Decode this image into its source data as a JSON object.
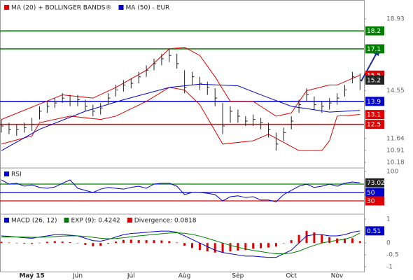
{
  "chart_data": [
    {
      "type": "ohlc",
      "ylim": [
        9.84,
        20.08
      ],
      "yticks": [
        18.93,
        14.55,
        11.64,
        10.91,
        10.18
      ],
      "prices": {
        "color": "#222222",
        "high": [
          12.8,
          12.6,
          12.5,
          12.6,
          12.9,
          13.6,
          13.9,
          14.1,
          14.4,
          14.3,
          14.3,
          14.0,
          13.7,
          13.8,
          14.4,
          14.9,
          15.2,
          15.3,
          15.7,
          16.1,
          16.5,
          16.8,
          17.1,
          16.8,
          15.8,
          15.7,
          15.4,
          15.1,
          14.7,
          13.8,
          13.6,
          13.4,
          13.0,
          13.1,
          12.9,
          12.6,
          12.0,
          12.3,
          13.0,
          14.0,
          14.7,
          14.2,
          13.9,
          14.1,
          14.4,
          14.9,
          15.7,
          15.6
        ],
        "low": [
          12.0,
          11.9,
          11.8,
          12.0,
          12.1,
          12.8,
          13.2,
          13.5,
          13.8,
          13.6,
          13.6,
          13.3,
          13.0,
          13.1,
          13.7,
          14.2,
          14.5,
          14.7,
          15.0,
          15.4,
          15.8,
          16.1,
          16.3,
          15.9,
          14.4,
          14.9,
          14.6,
          14.3,
          13.6,
          11.9,
          12.6,
          12.6,
          12.4,
          12.4,
          12.2,
          11.7,
          10.9,
          11.5,
          12.2,
          13.2,
          13.9,
          13.4,
          13.2,
          13.4,
          13.7,
          14.2,
          15.0,
          14.6
        ],
        "close": [
          12.4,
          12.2,
          12.2,
          12.3,
          12.5,
          13.3,
          13.6,
          13.8,
          14.1,
          13.9,
          14.0,
          13.6,
          13.3,
          13.5,
          14.1,
          14.6,
          14.9,
          15.0,
          15.4,
          15.8,
          16.2,
          16.5,
          16.7,
          16.2,
          14.75,
          15.4,
          15.0,
          14.75,
          14.1,
          12.4,
          13.3,
          13.0,
          12.7,
          12.8,
          12.6,
          12.2,
          11.3,
          12.0,
          12.7,
          13.7,
          14.3,
          13.7,
          13.6,
          13.8,
          14.1,
          14.6,
          15.4,
          15.2
        ]
      },
      "series": [
        {
          "name": "MA (20) + BOLLINGER BANDS®",
          "color": "#e00000",
          "bands": [
            {
              "x": [
                0,
                8,
                12,
                15,
                19,
                22,
                24,
                26,
                28,
                30,
                33,
                36,
                38,
                40,
                43,
                44,
                47
              ],
              "values": [
                12.8,
                14.3,
                14.1,
                14.75,
                15.8,
                17.1,
                17.2,
                16.7,
                15.4,
                13.9,
                13.9,
                13.0,
                13.2,
                14.55,
                14.9,
                14.9,
                15.5
              ]
            },
            {
              "x": [
                0,
                4,
                5,
                9,
                13,
                15,
                19,
                22,
                24,
                26,
                29,
                33,
                35,
                39,
                42,
                43,
                44,
                47
              ],
              "values": [
                11.3,
                11.8,
                12.6,
                13.0,
                12.8,
                13.0,
                13.9,
                14.75,
                14.6,
                13.7,
                11.3,
                11.5,
                11.9,
                10.9,
                10.9,
                11.5,
                13.0,
                13.1
              ]
            }
          ]
        },
        {
          "name": "MA (50) - EUR",
          "color": "#0000cc",
          "x": [
            0,
            5,
            11,
            16,
            22,
            26,
            31,
            34,
            38,
            43,
            47
          ],
          "values": [
            10.9,
            12.2,
            13.3,
            14.0,
            14.75,
            14.95,
            14.85,
            14.3,
            13.6,
            13.25,
            13.35
          ]
        }
      ],
      "levels": [
        {
          "value": 18.2,
          "color": "#008000"
        },
        {
          "value": 17.1,
          "color": "#008000"
        },
        {
          "value": 13.9,
          "color": "#0000cc"
        },
        {
          "value": 12.5,
          "color": "#e00000"
        }
      ]
    },
    {
      "type": "line",
      "ylim": [
        -1.7,
        108.3
      ],
      "yticks": [
        100
      ],
      "series": [
        {
          "name": "RSI",
          "color": "#0000cc",
          "values": [
            80,
            70,
            72,
            65,
            68,
            62,
            60,
            63,
            72,
            80,
            60,
            55,
            50,
            58,
            62,
            60,
            58,
            62,
            65,
            60,
            70,
            72,
            72,
            65,
            45,
            50,
            50,
            48,
            45,
            30,
            40,
            42,
            38,
            40,
            32,
            32,
            28,
            45,
            55,
            65,
            70,
            62,
            65,
            70,
            65,
            72,
            75,
            73.02
          ]
        }
      ],
      "levels": [
        {
          "value": 70,
          "color": "#008000",
          "show_label": false
        },
        {
          "value": 50,
          "color": "#0000cc",
          "show_label": true
        },
        {
          "value": 30,
          "color": "#e00000",
          "show_label": true
        }
      ]
    },
    {
      "type": "macd",
      "ylim": [
        -1.2,
        1.21
      ],
      "yticks": [
        1,
        0,
        -0.5,
        -1
      ],
      "categories": [
        null,
        null,
        null,
        null,
        "May 15",
        null,
        null,
        null,
        null,
        null,
        "Jun",
        null,
        null,
        null,
        null,
        null,
        null,
        "Jul",
        null,
        null,
        null,
        null,
        null,
        null,
        "Aug",
        null,
        null,
        null,
        null,
        null,
        null,
        "Sep",
        null,
        null,
        null,
        null,
        null,
        null,
        "Oct",
        null,
        null,
        null,
        null,
        null,
        "Nov",
        null,
        null,
        null
      ],
      "series": [
        {
          "name": "MACD (26, 12)",
          "color": "#0000cc",
          "values": [
            0.3,
            0.28,
            0.25,
            0.22,
            0.2,
            0.25,
            0.3,
            0.35,
            0.35,
            0.33,
            0.3,
            0.2,
            0.1,
            0.08,
            0.15,
            0.25,
            0.35,
            0.4,
            0.42,
            0.45,
            0.48,
            0.5,
            0.5,
            0.45,
            0.3,
            0.15,
            0.0,
            -0.15,
            -0.3,
            -0.4,
            -0.45,
            -0.5,
            -0.55,
            -0.55,
            -0.58,
            -0.6,
            -0.6,
            -0.45,
            -0.3,
            0.0,
            0.3,
            0.35,
            0.35,
            0.3,
            0.3,
            0.35,
            0.45,
            0.51
          ]
        },
        {
          "name": "EXP (9): 0.4242",
          "color": "#008000",
          "values": [
            0.25,
            0.26,
            0.26,
            0.25,
            0.24,
            0.24,
            0.25,
            0.27,
            0.29,
            0.3,
            0.3,
            0.28,
            0.24,
            0.2,
            0.18,
            0.19,
            0.22,
            0.26,
            0.3,
            0.33,
            0.36,
            0.39,
            0.42,
            0.43,
            0.41,
            0.36,
            0.29,
            0.2,
            0.1,
            0.0,
            -0.1,
            -0.18,
            -0.25,
            -0.31,
            -0.36,
            -0.41,
            -0.45,
            -0.45,
            -0.42,
            -0.34,
            -0.21,
            -0.1,
            0.0,
            0.06,
            0.11,
            0.16,
            0.25,
            0.4242
          ]
        },
        {
          "name": "Divergence: 0.0818",
          "color": "#e00000",
          "histogram": true,
          "values": [
            0.05,
            0.02,
            -0.01,
            -0.03,
            -0.04,
            0.01,
            0.05,
            0.08,
            0.06,
            0.03,
            0,
            -0.08,
            -0.14,
            -0.12,
            -0.03,
            0.06,
            0.13,
            0.14,
            0.12,
            0.12,
            0.12,
            0.11,
            0.08,
            0.02,
            -0.11,
            -0.21,
            -0.29,
            -0.35,
            -0.4,
            -0.4,
            -0.35,
            -0.32,
            -0.3,
            -0.24,
            -0.22,
            -0.19,
            -0.15,
            0,
            0.12,
            0.34,
            0.51,
            0.45,
            0.35,
            0.24,
            0.19,
            0.19,
            0.2,
            0.0818
          ]
        }
      ]
    }
  ]
}
